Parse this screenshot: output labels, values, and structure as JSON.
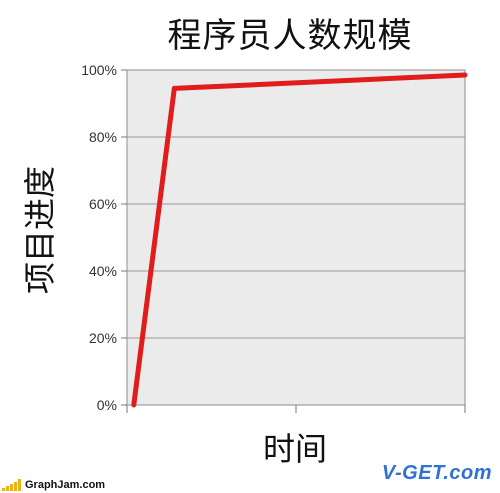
{
  "chart_data": {
    "type": "line",
    "title": "程序员人数规模",
    "xlabel": "时间",
    "ylabel": "项目进度",
    "ylim": [
      0,
      1
    ],
    "yticks": [
      "0%",
      "20%",
      "40%",
      "60%",
      "80%",
      "100%"
    ],
    "grid": true,
    "series": [
      {
        "values": [
          {
            "x": 0.02,
            "y": 0.0
          },
          {
            "x": 0.14,
            "y": 0.945
          },
          {
            "x": 1.0,
            "y": 0.985
          }
        ],
        "color": "#e01c1c"
      }
    ]
  },
  "branding": {
    "site_left": "GraphJam.com",
    "site_right": "V-GET.com"
  }
}
